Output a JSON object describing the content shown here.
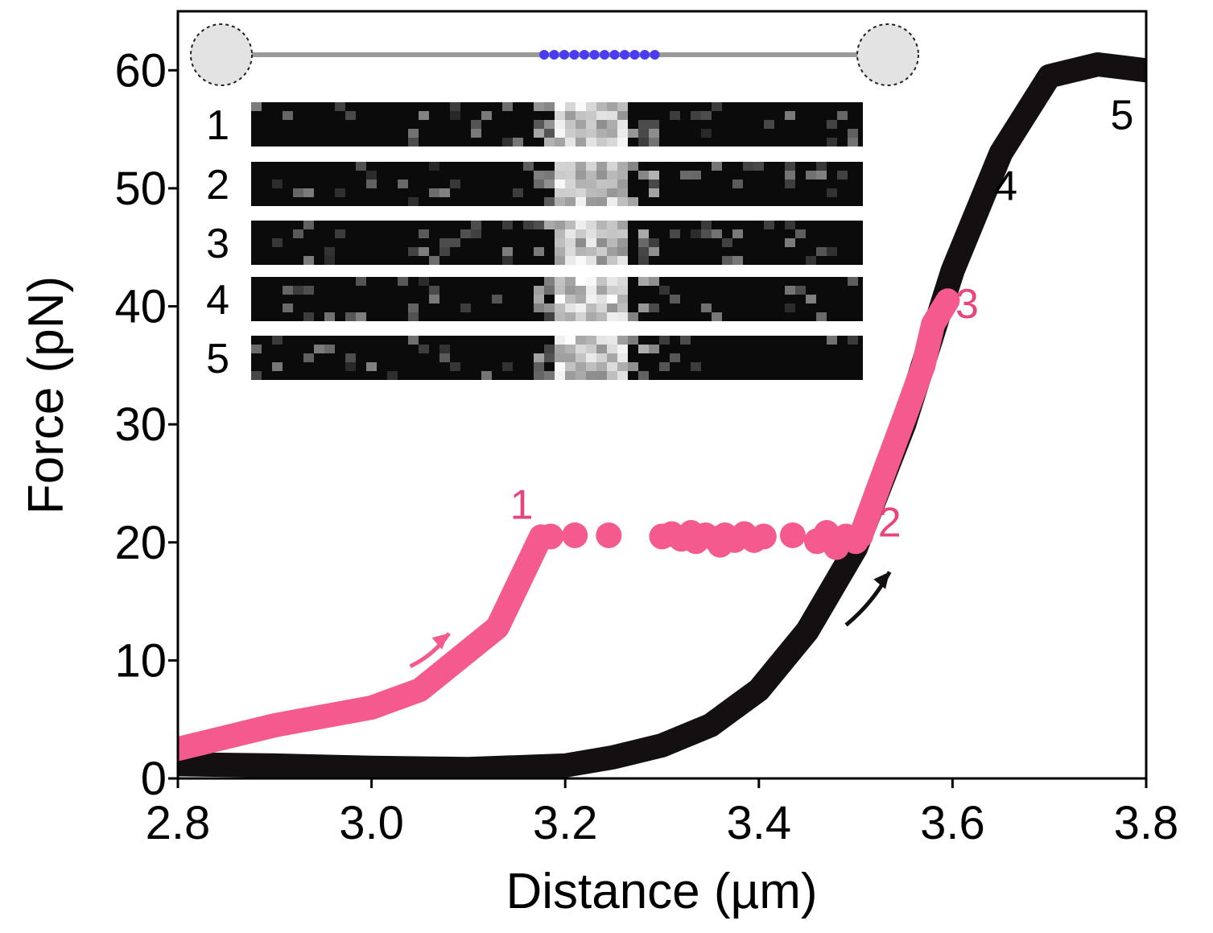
{
  "colors": {
    "black_curve": "#141012",
    "pink_curve": "#f45a8e",
    "pink_text": "#e8457f",
    "bead_fill": "#e3e3e3",
    "strand": "#9a9a9a",
    "blue_dots": "#4a3cf0"
  },
  "chart_data": {
    "type": "line",
    "xlabel": "Distance (µm)",
    "ylabel": "Force (pN)",
    "xlim": [
      2.8,
      3.8
    ],
    "ylim": [
      0,
      65
    ],
    "x_ticks": [
      "2.8",
      "3.0",
      "3.2",
      "3.4",
      "3.6",
      "3.8"
    ],
    "x_tick_values": [
      2.8,
      3.0,
      3.2,
      3.4,
      3.6,
      3.8
    ],
    "y_ticks": [
      "0",
      "10",
      "20",
      "30",
      "40",
      "50",
      "60"
    ],
    "y_tick_values": [
      0,
      10,
      20,
      30,
      40,
      50,
      60
    ],
    "grid": false,
    "series": [
      {
        "color": "#141012",
        "style": "thick-line",
        "points": [
          [
            2.8,
            1.2
          ],
          [
            2.9,
            1.1
          ],
          [
            3.0,
            0.9
          ],
          [
            3.1,
            0.8
          ],
          [
            3.2,
            1.1
          ],
          [
            3.25,
            1.8
          ],
          [
            3.3,
            2.8
          ],
          [
            3.35,
            4.5
          ],
          [
            3.4,
            7.5
          ],
          [
            3.45,
            12.5
          ],
          [
            3.5,
            19.5
          ],
          [
            3.55,
            30.0
          ],
          [
            3.6,
            43.0
          ],
          [
            3.65,
            53.0
          ],
          [
            3.7,
            59.5
          ],
          [
            3.75,
            60.5
          ],
          [
            3.8,
            60.0
          ]
        ]
      },
      {
        "color": "#f45a8e",
        "style": "thick-line",
        "points": [
          [
            2.8,
            2.5
          ],
          [
            2.9,
            4.5
          ],
          [
            3.0,
            6.0
          ],
          [
            3.05,
            7.5
          ],
          [
            3.13,
            12.8
          ],
          [
            3.175,
            20.5
          ]
        ]
      },
      {
        "color": "#f45a8e",
        "style": "dots",
        "points": [
          [
            3.185,
            20.5
          ],
          [
            3.21,
            20.6
          ],
          [
            3.245,
            20.6
          ],
          [
            3.3,
            20.5
          ],
          [
            3.31,
            20.7
          ],
          [
            3.32,
            20.3
          ],
          [
            3.33,
            20.8
          ],
          [
            3.335,
            20.1
          ],
          [
            3.345,
            20.6
          ],
          [
            3.355,
            20.3
          ],
          [
            3.36,
            19.8
          ],
          [
            3.365,
            20.6
          ],
          [
            3.375,
            20.2
          ],
          [
            3.385,
            20.7
          ],
          [
            3.395,
            20.2
          ],
          [
            3.405,
            20.5
          ],
          [
            3.435,
            20.6
          ],
          [
            3.46,
            20.1
          ],
          [
            3.47,
            20.8
          ],
          [
            3.48,
            19.6
          ],
          [
            3.49,
            20.5
          ],
          [
            3.5,
            20.1
          ],
          [
            3.505,
            20.6
          ]
        ]
      },
      {
        "color": "#f45a8e",
        "style": "thick-line",
        "points": [
          [
            3.505,
            20.5
          ],
          [
            3.525,
            25.0
          ],
          [
            3.55,
            30.5
          ],
          [
            3.57,
            35.0
          ],
          [
            3.58,
            38.5
          ],
          [
            3.595,
            40.5
          ]
        ]
      }
    ],
    "annotations": [
      {
        "text": "1",
        "x": 3.155,
        "y": 22.0,
        "color": "#e8457f"
      },
      {
        "text": "2",
        "x": 3.535,
        "y": 20.5,
        "color": "#e8457f"
      },
      {
        "text": "3",
        "x": 3.615,
        "y": 39.0,
        "color": "#e8457f"
      },
      {
        "text": "4",
        "x": 3.655,
        "y": 49.0,
        "color": "#000000"
      },
      {
        "text": "5",
        "x": 3.775,
        "y": 55.0,
        "color": "#000000"
      }
    ],
    "arrows": [
      {
        "from": [
          3.04,
          9.5
        ],
        "to": [
          3.08,
          12.3
        ],
        "color": "#f45a8e"
      },
      {
        "from": [
          3.49,
          13.0
        ],
        "to": [
          3.535,
          17.5
        ],
        "color": "#141012"
      }
    ]
  },
  "inset": {
    "strip_labels": [
      "1",
      "2",
      "3",
      "4",
      "5"
    ],
    "blue_dot_count": 12
  }
}
